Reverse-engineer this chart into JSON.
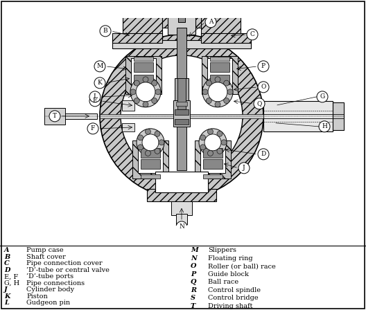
{
  "background_color": "#ffffff",
  "legend_left": [
    [
      "A",
      "Pump case"
    ],
    [
      "B",
      "Shaft cover"
    ],
    [
      "C",
      "Pipe connection cover"
    ],
    [
      "D",
      "’D’-tube or central valve"
    ],
    [
      "E, F",
      "’D’-tube ports"
    ],
    [
      "G, H",
      "Pipe connections"
    ],
    [
      "J",
      "Cylinder body"
    ],
    [
      "K",
      "Piston"
    ],
    [
      "L",
      "Gudgeon pin"
    ]
  ],
  "legend_right": [
    [
      "M",
      "Slippers"
    ],
    [
      "N",
      "Floating ring"
    ],
    [
      "O",
      "Roller (or ball) race"
    ],
    [
      "P",
      "Guide block"
    ],
    [
      "Q",
      "Ball race"
    ],
    [
      "R",
      "Control spindle"
    ],
    [
      "S",
      "Control bridge"
    ],
    [
      "T",
      "Driving shaft"
    ]
  ],
  "figsize": [
    5.28,
    4.48
  ],
  "dpi": 100,
  "font_size_legend": 7.0,
  "font_size_label": 6.5
}
